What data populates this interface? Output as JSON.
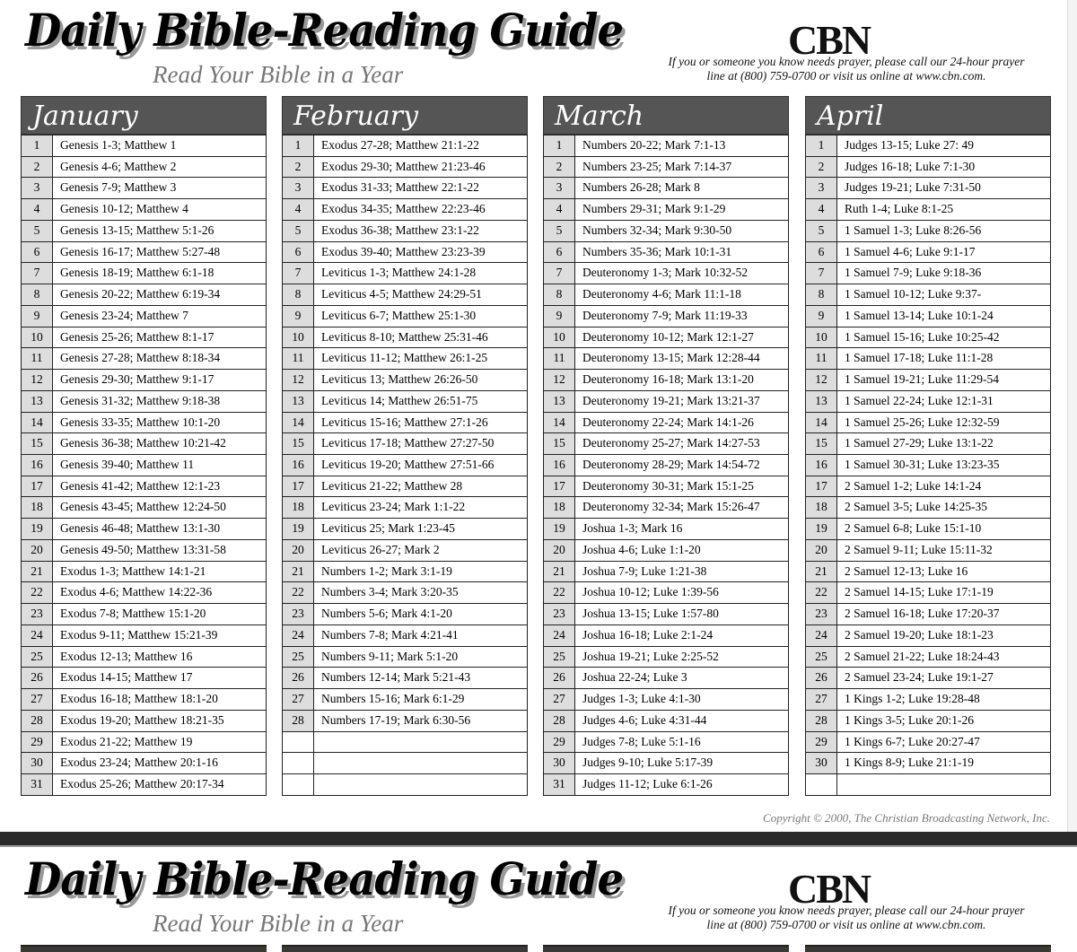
{
  "header": {
    "title": "Daily Bible-Reading Guide",
    "subtitle": "Read Your Bible in a Year",
    "logo": "CBN",
    "prayer_line": "If you or someone you know needs prayer, please call our 24-hour prayer line at (800) 759-0700 or visit us online at www.cbn.com."
  },
  "months": [
    {
      "name": "January",
      "rows": [
        [
          "1",
          "Genesis 1-3; Matthew 1"
        ],
        [
          "2",
          "Genesis 4-6; Matthew 2"
        ],
        [
          "3",
          "Genesis 7-9; Matthew 3"
        ],
        [
          "4",
          "Genesis 10-12; Matthew 4"
        ],
        [
          "5",
          "Genesis 13-15; Matthew 5:1-26"
        ],
        [
          "6",
          "Genesis 16-17; Matthew 5:27-48"
        ],
        [
          "7",
          "Genesis 18-19; Matthew 6:1-18"
        ],
        [
          "8",
          "Genesis 20-22; Matthew 6:19-34"
        ],
        [
          "9",
          "Genesis 23-24; Matthew 7"
        ],
        [
          "10",
          "Genesis 25-26; Matthew 8:1-17"
        ],
        [
          "11",
          "Genesis 27-28; Matthew 8:18-34"
        ],
        [
          "12",
          "Genesis 29-30; Matthew 9:1-17"
        ],
        [
          "13",
          "Genesis 31-32; Matthew 9:18-38"
        ],
        [
          "14",
          "Genesis 33-35; Matthew 10:1-20"
        ],
        [
          "15",
          "Genesis 36-38; Matthew 10:21-42"
        ],
        [
          "16",
          "Genesis 39-40; Matthew 11"
        ],
        [
          "17",
          "Genesis 41-42; Matthew 12:1-23"
        ],
        [
          "18",
          "Genesis 43-45; Matthew 12:24-50"
        ],
        [
          "19",
          "Genesis 46-48; Matthew 13:1-30"
        ],
        [
          "20",
          "Genesis 49-50; Matthew 13:31-58"
        ],
        [
          "21",
          "Exodus 1-3; Matthew 14:1-21"
        ],
        [
          "22",
          "Exodus 4-6; Matthew 14:22-36"
        ],
        [
          "23",
          "Exodus 7-8; Matthew 15:1-20"
        ],
        [
          "24",
          "Exodus 9-11; Matthew 15:21-39"
        ],
        [
          "25",
          "Exodus 12-13; Matthew 16"
        ],
        [
          "26",
          "Exodus 14-15; Matthew 17"
        ],
        [
          "27",
          "Exodus 16-18; Matthew 18:1-20"
        ],
        [
          "28",
          "Exodus 19-20; Matthew 18:21-35"
        ],
        [
          "29",
          "Exodus 21-22; Matthew 19"
        ],
        [
          "30",
          "Exodus 23-24; Matthew 20:1-16"
        ],
        [
          "31",
          "Exodus 25-26; Matthew 20:17-34"
        ]
      ]
    },
    {
      "name": "February",
      "rows": [
        [
          "1",
          "Exodus 27-28; Matthew 21:1-22"
        ],
        [
          "2",
          "Exodus 29-30; Matthew 21:23-46"
        ],
        [
          "3",
          "Exodus 31-33; Matthew 22:1-22"
        ],
        [
          "4",
          "Exodus 34-35; Matthew 22:23-46"
        ],
        [
          "5",
          "Exodus 36-38; Matthew 23:1-22"
        ],
        [
          "6",
          "Exodus 39-40; Matthew 23:23-39"
        ],
        [
          "7",
          "Leviticus 1-3; Matthew 24:1-28"
        ],
        [
          "8",
          "Leviticus 4-5; Matthew 24:29-51"
        ],
        [
          "9",
          "Leviticus 6-7; Matthew 25:1-30"
        ],
        [
          "10",
          "Leviticus 8-10; Matthew 25:31-46"
        ],
        [
          "11",
          "Leviticus 11-12; Matthew 26:1-25"
        ],
        [
          "12",
          "Leviticus 13; Matthew 26:26-50"
        ],
        [
          "13",
          "Leviticus 14; Matthew 26:51-75"
        ],
        [
          "14",
          "Leviticus 15-16; Matthew 27:1-26"
        ],
        [
          "15",
          "Leviticus 17-18; Matthew 27:27-50"
        ],
        [
          "16",
          "Leviticus 19-20; Matthew 27:51-66"
        ],
        [
          "17",
          "Leviticus 21-22; Matthew 28"
        ],
        [
          "18",
          "Leviticus 23-24; Mark 1:1-22"
        ],
        [
          "19",
          "Leviticus 25; Mark 1:23-45"
        ],
        [
          "20",
          "Leviticus 26-27; Mark 2"
        ],
        [
          "21",
          "Numbers 1-2; Mark 3:1-19"
        ],
        [
          "22",
          "Numbers 3-4; Mark 3:20-35"
        ],
        [
          "23",
          "Numbers 5-6; Mark 4:1-20"
        ],
        [
          "24",
          "Numbers 7-8; Mark 4:21-41"
        ],
        [
          "25",
          "Numbers 9-11; Mark 5:1-20"
        ],
        [
          "26",
          "Numbers 12-14; Mark 5:21-43"
        ],
        [
          "27",
          "Numbers 15-16; Mark 6:1-29"
        ],
        [
          "28",
          "Numbers 17-19; Mark 6:30-56"
        ],
        [
          "",
          ""
        ],
        [
          "",
          ""
        ],
        [
          "",
          ""
        ]
      ]
    },
    {
      "name": "March",
      "rows": [
        [
          "1",
          "Numbers 20-22; Mark 7:1-13"
        ],
        [
          "2",
          "Numbers 23-25; Mark 7:14-37"
        ],
        [
          "3",
          "Numbers 26-28; Mark 8"
        ],
        [
          "4",
          "Numbers 29-31; Mark 9:1-29"
        ],
        [
          "5",
          "Numbers 32-34; Mark 9:30-50"
        ],
        [
          "6",
          "Numbers 35-36; Mark 10:1-31"
        ],
        [
          "7",
          "Deuteronomy 1-3; Mark 10:32-52"
        ],
        [
          "8",
          "Deuteronomy 4-6; Mark 11:1-18"
        ],
        [
          "9",
          "Deuteronomy 7-9; Mark 11:19-33"
        ],
        [
          "10",
          "Deuteronomy 10-12; Mark 12:1-27"
        ],
        [
          "11",
          "Deuteronomy 13-15; Mark 12:28-44"
        ],
        [
          "12",
          "Deuteronomy 16-18; Mark 13:1-20"
        ],
        [
          "13",
          "Deuteronomy 19-21; Mark 13:21-37"
        ],
        [
          "14",
          "Deuteronomy 22-24; Mark 14:1-26"
        ],
        [
          "15",
          "Deuteronomy 25-27; Mark 14:27-53"
        ],
        [
          "16",
          "Deuteronomy 28-29; Mark 14:54-72"
        ],
        [
          "17",
          "Deuteronomy 30-31; Mark 15:1-25"
        ],
        [
          "18",
          "Deuteronomy 32-34; Mark 15:26-47"
        ],
        [
          "19",
          "Joshua 1-3; Mark 16"
        ],
        [
          "20",
          "Joshua 4-6; Luke 1:1-20"
        ],
        [
          "21",
          "Joshua 7-9; Luke 1:21-38"
        ],
        [
          "22",
          "Joshua 10-12; Luke 1:39-56"
        ],
        [
          "23",
          "Joshua 13-15; Luke 1:57-80"
        ],
        [
          "24",
          "Joshua 16-18; Luke 2:1-24"
        ],
        [
          "25",
          "Joshua 19-21; Luke 2:25-52"
        ],
        [
          "26",
          "Joshua 22-24; Luke 3"
        ],
        [
          "27",
          "Judges 1-3; Luke 4:1-30"
        ],
        [
          "28",
          "Judges 4-6; Luke 4:31-44"
        ],
        [
          "29",
          "Judges 7-8; Luke 5:1-16"
        ],
        [
          "30",
          "Judges 9-10; Luke 5:17-39"
        ],
        [
          "31",
          "Judges 11-12; Luke 6:1-26"
        ]
      ]
    },
    {
      "name": "April",
      "rows": [
        [
          "1",
          "Judges 13-15;  Luke 27: 49"
        ],
        [
          "2",
          "Judges 16-18;  Luke 7:1-30"
        ],
        [
          "3",
          "Judges 19-21;  Luke 7:31-50"
        ],
        [
          "4",
          "Ruth 1-4;  Luke 8:1-25"
        ],
        [
          "5",
          "1 Samuel 1-3;  Luke 8:26-56"
        ],
        [
          "6",
          "1 Samuel 4-6;  Luke 9:1-17"
        ],
        [
          "7",
          "1 Samuel 7-9;  Luke 9:18-36"
        ],
        [
          "8",
          "1 Samuel 10-12;  Luke 9:37-"
        ],
        [
          "9",
          "1 Samuel 13-14;  Luke 10:1-24"
        ],
        [
          "10",
          "1 Samuel 15-16;  Luke 10:25-42"
        ],
        [
          "11",
          "1 Samuel 17-18;  Luke 11:1-28"
        ],
        [
          "12",
          "1 Samuel 19-21;  Luke 11:29-54"
        ],
        [
          "13",
          "1 Samuel 22-24;  Luke 12:1-31"
        ],
        [
          "14",
          "1 Samuel 25-26;  Luke 12:32-59"
        ],
        [
          "15",
          "1 Samuel 27-29;  Luke 13:1-22"
        ],
        [
          "16",
          "1 Samuel 30-31;  Luke 13:23-35"
        ],
        [
          "17",
          "2 Samuel 1-2;  Luke 14:1-24"
        ],
        [
          "18",
          "2 Samuel 3-5;  Luke 14:25-35"
        ],
        [
          "19",
          "2 Samuel 6-8;  Luke 15:1-10"
        ],
        [
          "20",
          "2 Samuel 9-11;  Luke 15:11-32"
        ],
        [
          "21",
          "2 Samuel 12-13;  Luke 16"
        ],
        [
          "22",
          "2 Samuel 14-15;  Luke 17:1-19"
        ],
        [
          "23",
          "2 Samuel 16-18;  Luke 17:20-37"
        ],
        [
          "24",
          "2 Samuel 19-20;  Luke 18:1-23"
        ],
        [
          "25",
          "2 Samuel 21-22;  Luke 18:24-43"
        ],
        [
          "26",
          "2 Samuel 23-24;  Luke 19:1-27"
        ],
        [
          "27",
          "1 Kings 1-2;  Luke 19:28-48"
        ],
        [
          "28",
          "1 Kings 3-5;  Luke 20:1-26"
        ],
        [
          "29",
          "1 Kings 6-7;  Luke 20:27-47"
        ],
        [
          "30",
          "1 Kings 8-9;  Luke 21:1-19"
        ],
        [
          "",
          ""
        ]
      ]
    }
  ],
  "copyright": "Copyright © 2000, The Christian Broadcasting Network, Inc.",
  "colors": {
    "month_header": "#555555",
    "day_cell": "#dddddd",
    "page_break": "#2a2a2a"
  }
}
